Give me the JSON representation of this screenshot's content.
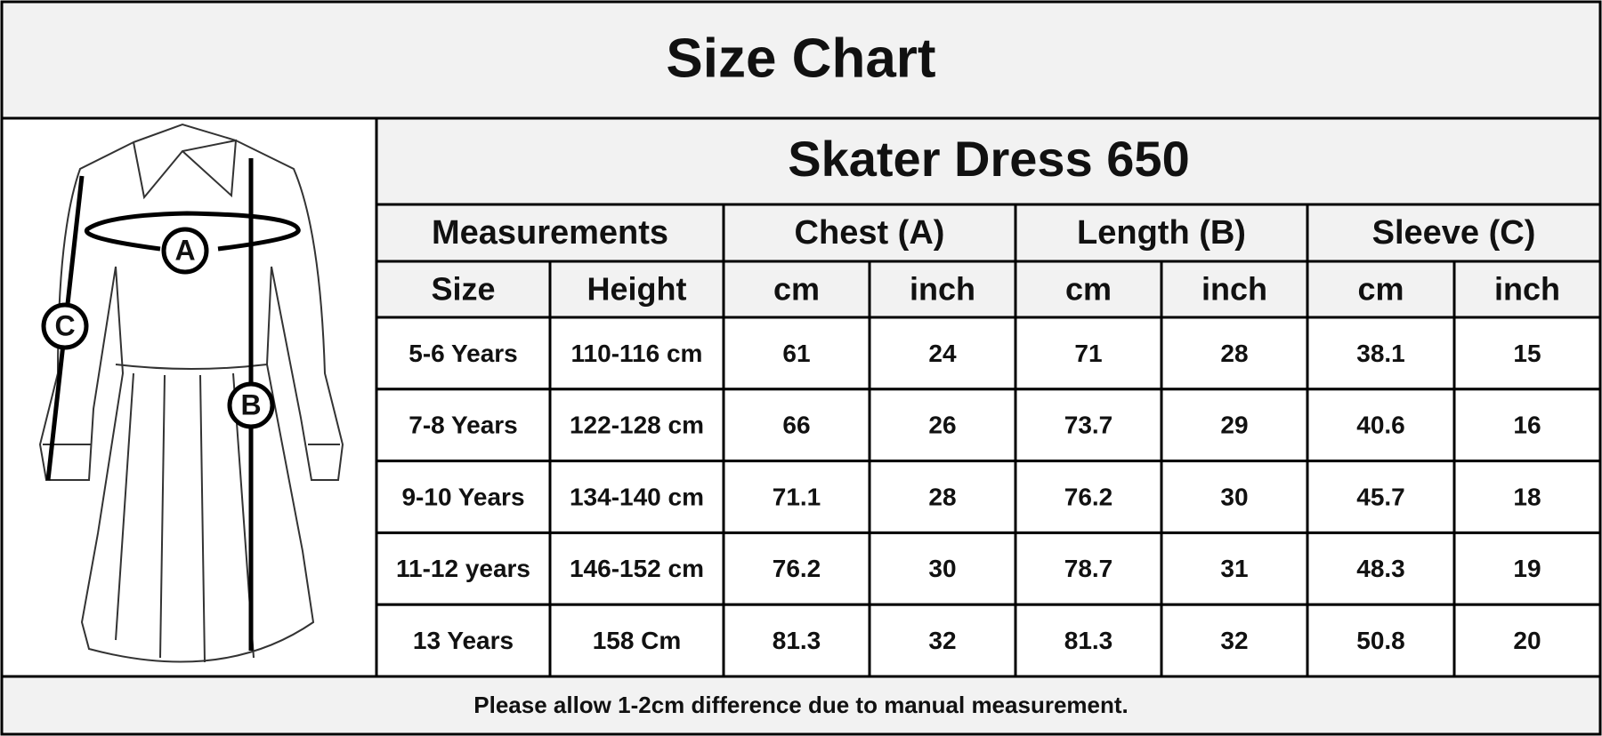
{
  "title": "Size Chart",
  "diagram": {
    "labels": [
      "A",
      "B",
      "C"
    ]
  },
  "table": {
    "title": "Skater Dress 650",
    "group_headers": [
      "Measurements",
      "Chest (A)",
      "Length (B)",
      "Sleeve (C)"
    ],
    "sub_headers": [
      "Size",
      "Height",
      "cm",
      "inch",
      "cm",
      "inch",
      "cm",
      "inch"
    ],
    "rows": [
      [
        "5-6 Years",
        "110-116 cm",
        "61",
        "24",
        "71",
        "28",
        "38.1",
        "15"
      ],
      [
        "7-8 Years",
        "122-128 cm",
        "66",
        "26",
        "73.7",
        "29",
        "40.6",
        "16"
      ],
      [
        "9-10 Years",
        "134-140 cm",
        "71.1",
        "28",
        "76.2",
        "30",
        "45.7",
        "18"
      ],
      [
        "11-12 years",
        "146-152 cm",
        "76.2",
        "30",
        "78.7",
        "31",
        "48.3",
        "19"
      ],
      [
        "13 Years",
        "158 Cm",
        "81.3",
        "32",
        "81.3",
        "32",
        "50.8",
        "20"
      ]
    ]
  },
  "footer": "Please allow 1-2cm difference due to manual measurement."
}
